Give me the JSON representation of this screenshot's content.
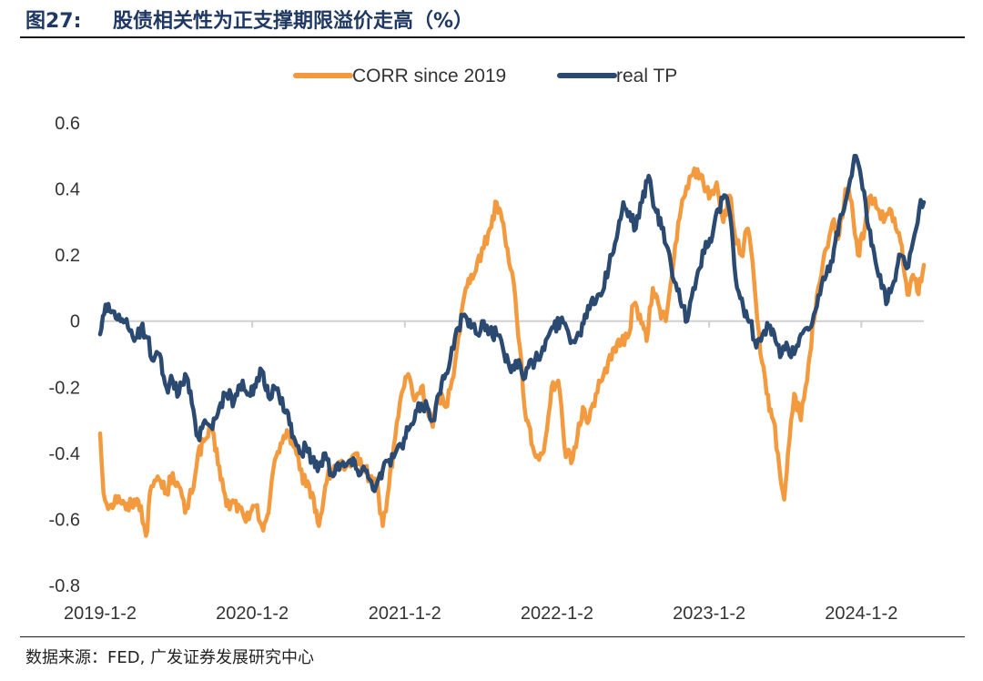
{
  "header": {
    "figure_number": "图27:",
    "title": "股债相关性为正支撑期限溢价走高（%）"
  },
  "source": "数据来源：FED, 广发证券发展研究中心",
  "colors": {
    "corr": "#F39A3F",
    "tp": "#2B4A72",
    "axis": "#d0d0d0"
  },
  "chart_data": {
    "type": "line",
    "title": "股债相关性为正支撑期限溢价走高（%）",
    "xlabel": "",
    "ylabel": "",
    "x_ticks": [
      "2019-1-2",
      "2020-1-2",
      "2021-1-2",
      "2022-1-2",
      "2023-1-2",
      "2024-1-2"
    ],
    "y_ticks": [
      "0.6",
      "0.4",
      "0.2",
      "0",
      "-0.2",
      "-0.4",
      "-0.6",
      "-0.8"
    ],
    "ylim": [
      -0.8,
      0.6
    ],
    "xlim": [
      "2019-01-02",
      "2024-05-31"
    ],
    "legend": "top-center",
    "grid": false,
    "series": [
      {
        "name": "CORR since 2019",
        "color": "#F39A3F",
        "points": [
          [
            "2019-01-02",
            -0.34
          ],
          [
            "2019-01-10",
            -0.52
          ],
          [
            "2019-01-25",
            -0.56
          ],
          [
            "2019-02-15",
            -0.53
          ],
          [
            "2019-03-05",
            -0.57
          ],
          [
            "2019-03-25",
            -0.54
          ],
          [
            "2019-04-10",
            -0.56
          ],
          [
            "2019-04-22",
            -0.65
          ],
          [
            "2019-05-05",
            -0.5
          ],
          [
            "2019-05-20",
            -0.47
          ],
          [
            "2019-06-10",
            -0.52
          ],
          [
            "2019-06-25",
            -0.46
          ],
          [
            "2019-07-10",
            -0.5
          ],
          [
            "2019-07-25",
            -0.58
          ],
          [
            "2019-08-10",
            -0.52
          ],
          [
            "2019-08-25",
            -0.4
          ],
          [
            "2019-09-10",
            -0.36
          ],
          [
            "2019-09-25",
            -0.33
          ],
          [
            "2019-10-15",
            -0.44
          ],
          [
            "2019-11-01",
            -0.56
          ],
          [
            "2019-11-20",
            -0.55
          ],
          [
            "2019-12-10",
            -0.58
          ],
          [
            "2019-12-25",
            -0.6
          ],
          [
            "2020-01-10",
            -0.56
          ],
          [
            "2020-01-25",
            -0.62
          ],
          [
            "2020-02-10",
            -0.58
          ],
          [
            "2020-02-25",
            -0.42
          ],
          [
            "2020-03-10",
            -0.37
          ],
          [
            "2020-03-25",
            -0.33
          ],
          [
            "2020-04-10",
            -0.38
          ],
          [
            "2020-04-25",
            -0.45
          ],
          [
            "2020-05-10",
            -0.5
          ],
          [
            "2020-05-25",
            -0.52
          ],
          [
            "2020-06-10",
            -0.62
          ],
          [
            "2020-06-25",
            -0.5
          ],
          [
            "2020-07-10",
            -0.45
          ],
          [
            "2020-07-25",
            -0.43
          ],
          [
            "2020-08-10",
            -0.45
          ],
          [
            "2020-08-25",
            -0.44
          ],
          [
            "2020-09-10",
            -0.4
          ],
          [
            "2020-09-25",
            -0.45
          ],
          [
            "2020-10-10",
            -0.47
          ],
          [
            "2020-10-25",
            -0.48
          ],
          [
            "2020-11-10",
            -0.62
          ],
          [
            "2020-11-25",
            -0.5
          ],
          [
            "2020-12-10",
            -0.35
          ],
          [
            "2020-12-25",
            -0.22
          ],
          [
            "2021-01-10",
            -0.16
          ],
          [
            "2021-01-25",
            -0.24
          ],
          [
            "2021-02-10",
            -0.2
          ],
          [
            "2021-02-25",
            -0.26
          ],
          [
            "2021-03-10",
            -0.32
          ],
          [
            "2021-03-25",
            -0.22
          ],
          [
            "2021-04-10",
            -0.26
          ],
          [
            "2021-04-25",
            -0.18
          ],
          [
            "2021-05-10",
            -0.05
          ],
          [
            "2021-05-25",
            0.08
          ],
          [
            "2021-06-10",
            0.14
          ],
          [
            "2021-06-25",
            0.18
          ],
          [
            "2021-07-10",
            0.22
          ],
          [
            "2021-07-25",
            0.28
          ],
          [
            "2021-08-10",
            0.36
          ],
          [
            "2021-08-20",
            0.33
          ],
          [
            "2021-09-05",
            0.22
          ],
          [
            "2021-09-20",
            0.12
          ],
          [
            "2021-10-05",
            -0.08
          ],
          [
            "2021-10-20",
            -0.3
          ],
          [
            "2021-11-05",
            -0.38
          ],
          [
            "2021-11-20",
            -0.42
          ],
          [
            "2021-12-05",
            -0.36
          ],
          [
            "2021-12-20",
            -0.2
          ],
          [
            "2022-01-05",
            -0.18
          ],
          [
            "2022-01-20",
            -0.38
          ],
          [
            "2022-02-05",
            -0.43
          ],
          [
            "2022-02-20",
            -0.35
          ],
          [
            "2022-03-05",
            -0.26
          ],
          [
            "2022-03-20",
            -0.3
          ],
          [
            "2022-04-05",
            -0.22
          ],
          [
            "2022-04-20",
            -0.18
          ],
          [
            "2022-05-05",
            -0.12
          ],
          [
            "2022-05-20",
            -0.08
          ],
          [
            "2022-06-05",
            -0.07
          ],
          [
            "2022-06-20",
            -0.05
          ],
          [
            "2022-07-05",
            0.05
          ],
          [
            "2022-07-20",
            0.02
          ],
          [
            "2022-08-05",
            -0.06
          ],
          [
            "2022-08-20",
            0.1
          ],
          [
            "2022-09-05",
            0.04
          ],
          [
            "2022-09-20",
            0.0
          ],
          [
            "2022-10-05",
            0.14
          ],
          [
            "2022-10-20",
            0.3
          ],
          [
            "2022-11-05",
            0.38
          ],
          [
            "2022-11-20",
            0.44
          ],
          [
            "2022-12-05",
            0.46
          ],
          [
            "2022-12-20",
            0.41
          ],
          [
            "2023-01-05",
            0.38
          ],
          [
            "2023-01-20",
            0.42
          ],
          [
            "2023-02-05",
            0.3
          ],
          [
            "2023-02-20",
            0.38
          ],
          [
            "2023-03-05",
            0.26
          ],
          [
            "2023-03-20",
            0.2
          ],
          [
            "2023-04-05",
            0.28
          ],
          [
            "2023-04-20",
            0.12
          ],
          [
            "2023-05-05",
            -0.1
          ],
          [
            "2023-05-20",
            -0.22
          ],
          [
            "2023-06-05",
            -0.3
          ],
          [
            "2023-06-20",
            -0.45
          ],
          [
            "2023-07-01",
            -0.54
          ],
          [
            "2023-07-10",
            -0.4
          ],
          [
            "2023-07-25",
            -0.22
          ],
          [
            "2023-08-10",
            -0.3
          ],
          [
            "2023-08-25",
            -0.18
          ],
          [
            "2023-09-10",
            0.0
          ],
          [
            "2023-09-25",
            0.12
          ],
          [
            "2023-10-10",
            0.22
          ],
          [
            "2023-10-25",
            0.3
          ],
          [
            "2023-11-10",
            0.26
          ],
          [
            "2023-11-25",
            0.4
          ],
          [
            "2023-12-10",
            0.36
          ],
          [
            "2023-12-25",
            0.2
          ],
          [
            "2024-01-10",
            0.28
          ],
          [
            "2024-01-25",
            0.38
          ],
          [
            "2024-02-10",
            0.34
          ],
          [
            "2024-02-25",
            0.3
          ],
          [
            "2024-03-10",
            0.34
          ],
          [
            "2024-03-25",
            0.28
          ],
          [
            "2024-04-05",
            0.24
          ],
          [
            "2024-04-15",
            0.14
          ],
          [
            "2024-04-25",
            0.08
          ],
          [
            "2024-05-05",
            0.14
          ],
          [
            "2024-05-15",
            0.09
          ],
          [
            "2024-05-25",
            0.12
          ],
          [
            "2024-05-31",
            0.17
          ]
        ]
      },
      {
        "name": "real TP",
        "color": "#2B4A72",
        "points": [
          [
            "2019-01-02",
            -0.04
          ],
          [
            "2019-01-15",
            0.05
          ],
          [
            "2019-02-01",
            0.03
          ],
          [
            "2019-02-20",
            0.0
          ],
          [
            "2019-03-10",
            -0.02
          ],
          [
            "2019-03-25",
            -0.06
          ],
          [
            "2019-04-10",
            -0.02
          ],
          [
            "2019-04-25",
            -0.05
          ],
          [
            "2019-05-10",
            -0.12
          ],
          [
            "2019-05-25",
            -0.1
          ],
          [
            "2019-06-10",
            -0.2
          ],
          [
            "2019-06-25",
            -0.18
          ],
          [
            "2019-07-10",
            -0.22
          ],
          [
            "2019-07-25",
            -0.16
          ],
          [
            "2019-08-10",
            -0.25
          ],
          [
            "2019-08-25",
            -0.35
          ],
          [
            "2019-09-10",
            -0.3
          ],
          [
            "2019-09-25",
            -0.32
          ],
          [
            "2019-10-15",
            -0.26
          ],
          [
            "2019-11-01",
            -0.22
          ],
          [
            "2019-11-20",
            -0.24
          ],
          [
            "2019-12-10",
            -0.18
          ],
          [
            "2019-12-25",
            -0.22
          ],
          [
            "2020-01-10",
            -0.2
          ],
          [
            "2020-01-25",
            -0.15
          ],
          [
            "2020-02-10",
            -0.23
          ],
          [
            "2020-02-25",
            -0.2
          ],
          [
            "2020-03-10",
            -0.25
          ],
          [
            "2020-03-25",
            -0.27
          ],
          [
            "2020-04-10",
            -0.35
          ],
          [
            "2020-04-25",
            -0.4
          ],
          [
            "2020-05-10",
            -0.38
          ],
          [
            "2020-05-25",
            -0.42
          ],
          [
            "2020-06-10",
            -0.44
          ],
          [
            "2020-06-25",
            -0.4
          ],
          [
            "2020-07-10",
            -0.46
          ],
          [
            "2020-07-25",
            -0.43
          ],
          [
            "2020-08-10",
            -0.44
          ],
          [
            "2020-08-25",
            -0.42
          ],
          [
            "2020-09-10",
            -0.45
          ],
          [
            "2020-09-25",
            -0.44
          ],
          [
            "2020-10-10",
            -0.48
          ],
          [
            "2020-10-25",
            -0.5
          ],
          [
            "2020-11-10",
            -0.45
          ],
          [
            "2020-11-25",
            -0.42
          ],
          [
            "2020-12-10",
            -0.4
          ],
          [
            "2020-12-25",
            -0.38
          ],
          [
            "2021-01-10",
            -0.33
          ],
          [
            "2021-01-25",
            -0.3
          ],
          [
            "2021-02-10",
            -0.25
          ],
          [
            "2021-02-25",
            -0.26
          ],
          [
            "2021-03-10",
            -0.3
          ],
          [
            "2021-03-25",
            -0.22
          ],
          [
            "2021-04-10",
            -0.16
          ],
          [
            "2021-04-25",
            -0.08
          ],
          [
            "2021-05-10",
            -0.02
          ],
          [
            "2021-05-25",
            0.02
          ],
          [
            "2021-06-10",
            -0.02
          ],
          [
            "2021-06-25",
            -0.04
          ],
          [
            "2021-07-10",
            0.0
          ],
          [
            "2021-07-25",
            -0.03
          ],
          [
            "2021-08-10",
            -0.04
          ],
          [
            "2021-08-25",
            -0.08
          ],
          [
            "2021-09-10",
            -0.14
          ],
          [
            "2021-09-25",
            -0.12
          ],
          [
            "2021-10-10",
            -0.16
          ],
          [
            "2021-10-25",
            -0.14
          ],
          [
            "2021-11-10",
            -0.12
          ],
          [
            "2021-11-25",
            -0.1
          ],
          [
            "2021-12-10",
            -0.05
          ],
          [
            "2021-12-25",
            -0.02
          ],
          [
            "2022-01-10",
            0.0
          ],
          [
            "2022-01-25",
            -0.02
          ],
          [
            "2022-02-10",
            -0.06
          ],
          [
            "2022-02-25",
            -0.04
          ],
          [
            "2022-03-10",
            0.02
          ],
          [
            "2022-03-25",
            0.06
          ],
          [
            "2022-04-10",
            0.08
          ],
          [
            "2022-04-25",
            0.1
          ],
          [
            "2022-05-10",
            0.2
          ],
          [
            "2022-05-25",
            0.25
          ],
          [
            "2022-06-10",
            0.36
          ],
          [
            "2022-06-25",
            0.33
          ],
          [
            "2022-07-10",
            0.28
          ],
          [
            "2022-07-25",
            0.36
          ],
          [
            "2022-08-10",
            0.44
          ],
          [
            "2022-08-25",
            0.34
          ],
          [
            "2022-09-10",
            0.28
          ],
          [
            "2022-09-25",
            0.22
          ],
          [
            "2022-10-10",
            0.12
          ],
          [
            "2022-10-25",
            0.06
          ],
          [
            "2022-11-10",
            0.0
          ],
          [
            "2022-11-25",
            0.1
          ],
          [
            "2022-12-10",
            0.16
          ],
          [
            "2022-12-25",
            0.24
          ],
          [
            "2023-01-10",
            0.26
          ],
          [
            "2023-01-25",
            0.34
          ],
          [
            "2023-02-10",
            0.38
          ],
          [
            "2023-02-25",
            0.28
          ],
          [
            "2023-03-10",
            0.1
          ],
          [
            "2023-03-25",
            0.04
          ],
          [
            "2023-04-10",
            0.0
          ],
          [
            "2023-04-25",
            -0.08
          ],
          [
            "2023-05-10",
            -0.04
          ],
          [
            "2023-05-25",
            -0.02
          ],
          [
            "2023-06-10",
            -0.06
          ],
          [
            "2023-06-25",
            -0.1
          ],
          [
            "2023-07-10",
            -0.08
          ],
          [
            "2023-07-25",
            -0.1
          ],
          [
            "2023-08-10",
            -0.04
          ],
          [
            "2023-08-25",
            -0.02
          ],
          [
            "2023-09-10",
            0.02
          ],
          [
            "2023-09-25",
            0.08
          ],
          [
            "2023-10-10",
            0.14
          ],
          [
            "2023-10-25",
            0.18
          ],
          [
            "2023-11-10",
            0.3
          ],
          [
            "2023-11-25",
            0.36
          ],
          [
            "2023-12-10",
            0.44
          ],
          [
            "2023-12-20",
            0.5
          ],
          [
            "2024-01-05",
            0.4
          ],
          [
            "2024-01-20",
            0.28
          ],
          [
            "2024-02-05",
            0.18
          ],
          [
            "2024-02-20",
            0.1
          ],
          [
            "2024-03-05",
            0.06
          ],
          [
            "2024-03-20",
            0.12
          ],
          [
            "2024-04-05",
            0.2
          ],
          [
            "2024-04-20",
            0.16
          ],
          [
            "2024-05-05",
            0.24
          ],
          [
            "2024-05-20",
            0.34
          ],
          [
            "2024-05-31",
            0.36
          ]
        ]
      }
    ]
  }
}
